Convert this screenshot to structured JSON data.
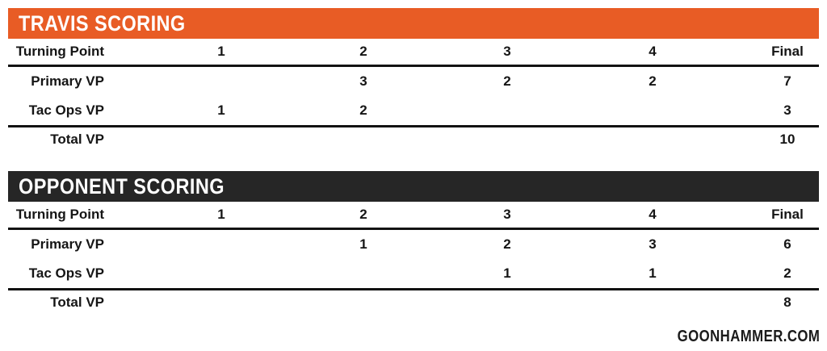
{
  "colors": {
    "page_background": "#FFFFFF",
    "travis_header_bg": "#E85C25",
    "opponent_header_bg": "#262626",
    "title_text": "#FFFFFF",
    "body_text": "#151515",
    "rule": "#121212"
  },
  "chart_data": [
    {
      "type": "table",
      "title": "TRAVIS SCORING",
      "header_bg": "#E85C25",
      "columns": [
        "Turning Point",
        "1",
        "2",
        "3",
        "4",
        "Final"
      ],
      "rows": [
        {
          "label": "Primary VP",
          "values": [
            "",
            "3",
            "2",
            "2",
            "7"
          ]
        },
        {
          "label": "Tac Ops VP",
          "values": [
            "1",
            "2",
            "",
            "",
            "3"
          ]
        },
        {
          "label": "Total VP",
          "values": [
            "",
            "",
            "",
            "",
            "10"
          ]
        }
      ]
    },
    {
      "type": "table",
      "title": "OPPONENT SCORING",
      "header_bg": "#262626",
      "columns": [
        "Turning Point",
        "1",
        "2",
        "3",
        "4",
        "Final"
      ],
      "rows": [
        {
          "label": "Primary VP",
          "values": [
            "",
            "1",
            "2",
            "3",
            "6"
          ]
        },
        {
          "label": "Tac Ops VP",
          "values": [
            "",
            "",
            "1",
            "1",
            "2"
          ]
        },
        {
          "label": "Total VP",
          "values": [
            "",
            "",
            "",
            "",
            "8"
          ]
        }
      ]
    }
  ],
  "footer": {
    "site": "GOONHAMMER.COM"
  }
}
